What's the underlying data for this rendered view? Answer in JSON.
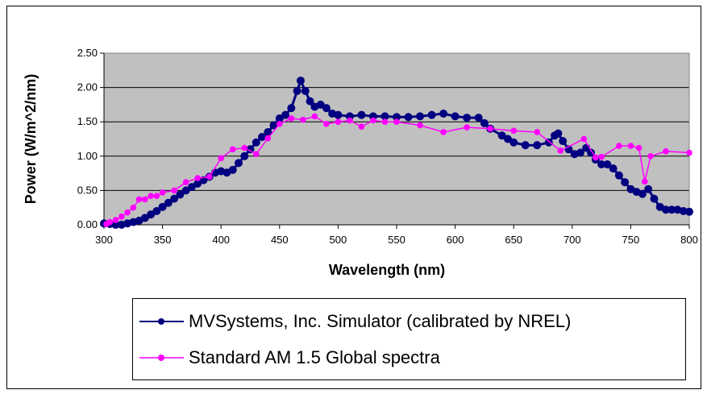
{
  "chart_data": {
    "type": "line",
    "title": "",
    "xlabel": "Wavelength (nm)",
    "ylabel": "Power (W/m^2/nm)",
    "xlim": [
      300,
      800
    ],
    "ylim": [
      0,
      2.5
    ],
    "x_ticks": [
      "300",
      "350",
      "400",
      "450",
      "500",
      "550",
      "600",
      "650",
      "700",
      "750",
      "800"
    ],
    "y_ticks": [
      "0.00",
      "0.50",
      "1.00",
      "1.50",
      "2.00",
      "2.50"
    ],
    "grid": "horizontal",
    "plot_background": "#c0c0c0",
    "legend_position": "bottom",
    "series": [
      {
        "name": "MVSystems, Inc. Simulator (calibrated by NREL)",
        "color": "#000080",
        "marker": "circle",
        "points": [
          [
            300,
            0.02
          ],
          [
            305,
            0.01
          ],
          [
            310,
            0.0
          ],
          [
            315,
            0.0
          ],
          [
            320,
            0.02
          ],
          [
            325,
            0.04
          ],
          [
            330,
            0.06
          ],
          [
            335,
            0.1
          ],
          [
            340,
            0.15
          ],
          [
            345,
            0.2
          ],
          [
            350,
            0.26
          ],
          [
            355,
            0.32
          ],
          [
            360,
            0.38
          ],
          [
            365,
            0.44
          ],
          [
            370,
            0.5
          ],
          [
            375,
            0.55
          ],
          [
            380,
            0.6
          ],
          [
            385,
            0.65
          ],
          [
            390,
            0.7
          ],
          [
            395,
            0.76
          ],
          [
            400,
            0.78
          ],
          [
            405,
            0.76
          ],
          [
            410,
            0.8
          ],
          [
            415,
            0.9
          ],
          [
            420,
            1.0
          ],
          [
            425,
            1.1
          ],
          [
            430,
            1.2
          ],
          [
            435,
            1.28
          ],
          [
            440,
            1.35
          ],
          [
            445,
            1.45
          ],
          [
            450,
            1.55
          ],
          [
            455,
            1.6
          ],
          [
            460,
            1.7
          ],
          [
            465,
            1.95
          ],
          [
            468,
            2.1
          ],
          [
            472,
            1.95
          ],
          [
            476,
            1.8
          ],
          [
            480,
            1.72
          ],
          [
            485,
            1.75
          ],
          [
            490,
            1.7
          ],
          [
            495,
            1.62
          ],
          [
            500,
            1.6
          ],
          [
            510,
            1.58
          ],
          [
            520,
            1.6
          ],
          [
            530,
            1.58
          ],
          [
            540,
            1.58
          ],
          [
            550,
            1.57
          ],
          [
            560,
            1.57
          ],
          [
            570,
            1.58
          ],
          [
            580,
            1.6
          ],
          [
            590,
            1.62
          ],
          [
            600,
            1.58
          ],
          [
            610,
            1.56
          ],
          [
            620,
            1.56
          ],
          [
            625,
            1.48
          ],
          [
            630,
            1.4
          ],
          [
            640,
            1.3
          ],
          [
            645,
            1.25
          ],
          [
            650,
            1.2
          ],
          [
            660,
            1.16
          ],
          [
            670,
            1.16
          ],
          [
            680,
            1.2
          ],
          [
            685,
            1.3
          ],
          [
            688,
            1.33
          ],
          [
            692,
            1.22
          ],
          [
            697,
            1.1
          ],
          [
            702,
            1.03
          ],
          [
            707,
            1.05
          ],
          [
            712,
            1.12
          ],
          [
            716,
            1.05
          ],
          [
            720,
            0.95
          ],
          [
            725,
            0.88
          ],
          [
            730,
            0.88
          ],
          [
            735,
            0.82
          ],
          [
            740,
            0.72
          ],
          [
            745,
            0.62
          ],
          [
            750,
            0.52
          ],
          [
            755,
            0.48
          ],
          [
            760,
            0.45
          ],
          [
            765,
            0.52
          ],
          [
            770,
            0.38
          ],
          [
            775,
            0.26
          ],
          [
            780,
            0.22
          ],
          [
            785,
            0.22
          ],
          [
            790,
            0.22
          ],
          [
            795,
            0.2
          ],
          [
            800,
            0.19
          ]
        ]
      },
      {
        "name": "Standard AM 1.5 Global spectra",
        "color": "#ff00ff",
        "marker": "circle",
        "points": [
          [
            302,
            0.01
          ],
          [
            305,
            0.04
          ],
          [
            310,
            0.07
          ],
          [
            315,
            0.12
          ],
          [
            320,
            0.18
          ],
          [
            325,
            0.25
          ],
          [
            330,
            0.37
          ],
          [
            335,
            0.37
          ],
          [
            340,
            0.42
          ],
          [
            345,
            0.42
          ],
          [
            350,
            0.47
          ],
          [
            360,
            0.5
          ],
          [
            370,
            0.62
          ],
          [
            380,
            0.68
          ],
          [
            390,
            0.7
          ],
          [
            400,
            0.97
          ],
          [
            410,
            1.1
          ],
          [
            420,
            1.12
          ],
          [
            430,
            1.03
          ],
          [
            440,
            1.26
          ],
          [
            450,
            1.47
          ],
          [
            460,
            1.55
          ],
          [
            470,
            1.53
          ],
          [
            480,
            1.58
          ],
          [
            490,
            1.47
          ],
          [
            500,
            1.5
          ],
          [
            510,
            1.52
          ],
          [
            520,
            1.43
          ],
          [
            530,
            1.52
          ],
          [
            540,
            1.5
          ],
          [
            550,
            1.5
          ],
          [
            570,
            1.45
          ],
          [
            590,
            1.35
          ],
          [
            610,
            1.42
          ],
          [
            630,
            1.4
          ],
          [
            650,
            1.37
          ],
          [
            670,
            1.35
          ],
          [
            690,
            1.08
          ],
          [
            710,
            1.25
          ],
          [
            720,
            0.98
          ],
          [
            725,
            0.99
          ],
          [
            740,
            1.15
          ],
          [
            750,
            1.15
          ],
          [
            757,
            1.12
          ],
          [
            762,
            0.63
          ],
          [
            767,
            1.0
          ],
          [
            780,
            1.07
          ],
          [
            800,
            1.05
          ]
        ]
      }
    ]
  }
}
